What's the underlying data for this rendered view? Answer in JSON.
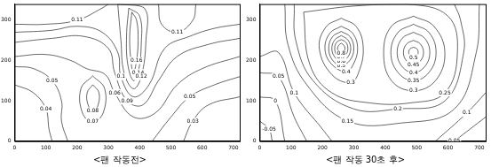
{
  "chart_data": [
    {
      "type": "contour",
      "title": "<팬 작동전>",
      "xlim": [
        0,
        720
      ],
      "ylim": [
        0,
        340
      ],
      "xticks": [
        0,
        100,
        200,
        300,
        400,
        500,
        600,
        700
      ],
      "yticks": [
        0,
        100,
        200,
        300
      ],
      "grid": false,
      "contours": [
        {
          "level": 0.16,
          "points": [
            [
              375,
              320
            ],
            [
              390,
              300
            ],
            [
              395,
              250
            ],
            [
              390,
              200
            ],
            [
              380,
              170
            ],
            [
              372,
              200
            ],
            [
              368,
              260
            ],
            [
              375,
              320
            ]
          ]
        },
        {
          "level": 0.14,
          "points": [
            [
              365,
              330
            ],
            [
              400,
              310
            ],
            [
              405,
              240
            ],
            [
              395,
              170
            ],
            [
              380,
              150
            ],
            [
              362,
              190
            ],
            [
              358,
              260
            ],
            [
              365,
              330
            ]
          ]
        },
        {
          "level": 0.12,
          "points": [
            [
              330,
              340
            ],
            [
              415,
              330
            ],
            [
              420,
              250
            ],
            [
              405,
              160
            ],
            [
              380,
              130
            ],
            [
              350,
              170
            ],
            [
              340,
              250
            ],
            [
              330,
              340
            ]
          ]
        },
        {
          "level": 0.11,
          "points": [
            [
              0,
              290
            ],
            [
              100,
              290
            ],
            [
              200,
              300
            ],
            [
              280,
              330
            ],
            [
              300,
              340
            ]
          ]
        },
        {
          "level": 0.11,
          "points": [
            [
              460,
              340
            ],
            [
              470,
              290
            ],
            [
              520,
              270
            ],
            [
              570,
              300
            ],
            [
              580,
              340
            ]
          ]
        },
        {
          "level": 0.1,
          "points": [
            [
              0,
              270
            ],
            [
              120,
              275
            ],
            [
              200,
              285
            ],
            [
              280,
              270
            ],
            [
              330,
              220
            ],
            [
              340,
              160
            ],
            [
              380,
              110
            ],
            [
              430,
              140
            ],
            [
              480,
              230
            ],
            [
              560,
              260
            ],
            [
              640,
              280
            ],
            [
              720,
              290
            ]
          ]
        },
        {
          "level": 0.09,
          "points": [
            [
              0,
              245
            ],
            [
              120,
              255
            ],
            [
              220,
              260
            ],
            [
              300,
              230
            ],
            [
              320,
              170
            ],
            [
              360,
              100
            ],
            [
              410,
              90
            ],
            [
              460,
              150
            ],
            [
              520,
              210
            ],
            [
              620,
              240
            ],
            [
              720,
              255
            ]
          ]
        },
        {
          "level": 0.06,
          "points": [
            [
              0,
              210
            ],
            [
              100,
              215
            ],
            [
              180,
              200
            ],
            [
              230,
              180
            ],
            [
              290,
              165
            ],
            [
              320,
              120
            ],
            [
              380,
              60
            ],
            [
              450,
              70
            ],
            [
              520,
              140
            ],
            [
              600,
              180
            ],
            [
              720,
              210
            ]
          ]
        },
        {
          "level": 0.08,
          "points": [
            [
              250,
              140
            ],
            [
              270,
              120
            ],
            [
              265,
              85
            ],
            [
              250,
              75
            ],
            [
              235,
              90
            ],
            [
              232,
              120
            ],
            [
              250,
              140
            ]
          ]
        },
        {
          "level": 0.07,
          "points": [
            [
              250,
              162
            ],
            [
              288,
              130
            ],
            [
              283,
              70
            ],
            [
              250,
              48
            ],
            [
              217,
              70
            ],
            [
              212,
              130
            ],
            [
              250,
              162
            ]
          ]
        },
        {
          "level": 0.05,
          "points": [
            [
              0,
              185
            ],
            [
              60,
              180
            ],
            [
              120,
              150
            ],
            [
              150,
              100
            ],
            [
              150,
              50
            ],
            [
              170,
              0
            ]
          ]
        },
        {
          "level": 0.05,
          "points": [
            [
              440,
              0
            ],
            [
              500,
              60
            ],
            [
              560,
              110
            ],
            [
              640,
              140
            ],
            [
              720,
              160
            ]
          ]
        },
        {
          "level": 0.04,
          "points": [
            [
              0,
              140
            ],
            [
              60,
              120
            ],
            [
              100,
              80
            ],
            [
              110,
              30
            ],
            [
              120,
              0
            ]
          ]
        },
        {
          "level": 0.03,
          "points": [
            [
              540,
              0
            ],
            [
              570,
              50
            ],
            [
              620,
              90
            ],
            [
              720,
              110
            ]
          ]
        }
      ]
    },
    {
      "type": "contour",
      "title": "<팬 작동 30초 후>",
      "xlim": [
        0,
        720
      ],
      "ylim": [
        0,
        340
      ],
      "xticks": [
        0,
        100,
        200,
        300,
        400,
        500,
        600,
        700
      ],
      "yticks": [
        0,
        100,
        200,
        300
      ],
      "grid": false,
      "contours": [
        {
          "level": -0.05,
          "points": [
            [
              0,
              50
            ],
            [
              30,
              30
            ],
            [
              40,
              0
            ]
          ]
        },
        {
          "level": 0,
          "points": [
            [
              0,
              110
            ],
            [
              50,
              100
            ],
            [
              80,
              0
            ]
          ]
        },
        {
          "level": 0.05,
          "points": [
            [
              0,
              170
            ],
            [
              60,
              160
            ],
            [
              110,
              60
            ],
            [
              150,
              0
            ]
          ]
        },
        {
          "level": 0.05,
          "points": [
            [
              620,
              0
            ],
            [
              720,
              60
            ]
          ]
        },
        {
          "level": 0.1,
          "points": [
            [
              0,
              210
            ],
            [
              60,
              220
            ],
            [
              110,
              120
            ],
            [
              200,
              30
            ],
            [
              230,
              0
            ]
          ]
        },
        {
          "level": 0.1,
          "points": [
            [
              560,
              0
            ],
            [
              660,
              70
            ],
            [
              720,
              120
            ]
          ]
        },
        {
          "level": 0.15,
          "points": [
            [
              80,
              340
            ],
            [
              90,
              240
            ],
            [
              150,
              140
            ],
            [
              280,
              50
            ],
            [
              450,
              45
            ],
            [
              620,
              80
            ],
            [
              690,
              220
            ],
            [
              700,
              340
            ]
          ]
        },
        {
          "level": 0.2,
          "points": [
            [
              110,
              340
            ],
            [
              115,
              250
            ],
            [
              170,
              150
            ],
            [
              300,
              80
            ],
            [
              440,
              80
            ],
            [
              590,
              100
            ],
            [
              650,
              220
            ],
            [
              640,
              300
            ],
            [
              620,
              340
            ]
          ]
        },
        {
          "level": 0.25,
          "points": [
            [
              140,
              320
            ],
            [
              300,
              335
            ],
            [
              470,
              340
            ],
            [
              600,
              310
            ],
            [
              630,
              220
            ],
            [
              590,
              120
            ],
            [
              480,
              95
            ],
            [
              350,
              95
            ],
            [
              230,
              120
            ],
            [
              160,
              190
            ],
            [
              140,
              320
            ]
          ]
        },
        {
          "level": 0.3,
          "points": [
            [
              260,
              305
            ],
            [
              309,
              283
            ],
            [
              330,
              230
            ],
            [
              315,
              170
            ],
            [
              290,
              145
            ],
            [
              230,
              165
            ],
            [
              190,
              230
            ],
            [
              211,
              283
            ],
            [
              260,
              305
            ]
          ]
        },
        {
          "level": 0.4,
          "points": [
            [
              260,
              285
            ],
            [
              296,
              268
            ],
            [
              312,
              230
            ],
            [
              298,
              190
            ],
            [
              275,
              172
            ],
            [
              228,
              192
            ],
            [
              208,
              230
            ],
            [
              224,
              268
            ],
            [
              260,
              285
            ]
          ]
        },
        {
          "level": 0.5,
          "points": [
            [
              260,
              272
            ],
            [
              288,
              259
            ],
            [
              300,
              230
            ],
            [
              288,
              201
            ],
            [
              260,
              188
            ],
            [
              232,
              201
            ],
            [
              220,
              230
            ],
            [
              232,
              259
            ],
            [
              260,
              272
            ]
          ]
        },
        {
          "level": 0.6,
          "points": [
            [
              260,
              262
            ],
            [
              281,
              251
            ],
            [
              290,
              230
            ],
            [
              281,
              209
            ],
            [
              260,
              198
            ],
            [
              239,
              209
            ],
            [
              230,
              230
            ],
            [
              239,
              251
            ],
            [
              260,
              262
            ]
          ]
        },
        {
          "level": 0.7,
          "points": [
            [
              260,
              252
            ],
            [
              275,
              245
            ],
            [
              281,
              230
            ],
            [
              275,
              215
            ],
            [
              260,
              208
            ],
            [
              245,
              215
            ],
            [
              239,
              230
            ],
            [
              245,
              245
            ],
            [
              260,
              252
            ]
          ]
        },
        {
          "level": 0.8,
          "points": [
            [
              260,
              243
            ],
            [
              268,
              238
            ],
            [
              272,
              230
            ],
            [
              268,
              222
            ],
            [
              260,
              217
            ],
            [
              252,
              222
            ],
            [
              248,
              230
            ],
            [
              252,
              238
            ],
            [
              260,
              243
            ]
          ]
        },
        {
          "level": 0.3,
          "points": [
            [
              490,
              310
            ],
            [
              555,
              285
            ],
            [
              590,
              220
            ],
            [
              560,
              150
            ],
            [
              490,
              125
            ],
            [
              420,
              150
            ],
            [
              395,
              220
            ],
            [
              420,
              285
            ],
            [
              490,
              310
            ]
          ]
        },
        {
          "level": 0.35,
          "points": [
            [
              490,
              290
            ],
            [
              540,
              269
            ],
            [
              562,
              220
            ],
            [
              540,
              171
            ],
            [
              490,
              150
            ],
            [
              440,
              171
            ],
            [
              418,
              220
            ],
            [
              440,
              269
            ],
            [
              490,
              290
            ]
          ]
        },
        {
          "level": 0.4,
          "points": [
            [
              490,
              270
            ],
            [
              526,
              255
            ],
            [
              542,
              220
            ],
            [
              526,
              185
            ],
            [
              490,
              170
            ],
            [
              454,
              185
            ],
            [
              438,
              220
            ],
            [
              454,
              255
            ],
            [
              490,
              270
            ]
          ]
        },
        {
          "level": 0.45,
          "points": [
            [
              490,
              250
            ],
            [
              512,
              241
            ],
            [
              522,
              220
            ],
            [
              512,
              199
            ],
            [
              490,
              190
            ],
            [
              468,
              199
            ],
            [
              458,
              220
            ],
            [
              468,
              241
            ],
            [
              490,
              250
            ]
          ]
        },
        {
          "level": 0.5,
          "points": [
            [
              490,
              233
            ],
            [
              501,
              229
            ],
            [
              505,
              220
            ],
            [
              501,
              211
            ],
            [
              490,
              207
            ],
            [
              479,
              211
            ],
            [
              475,
              220
            ],
            [
              479,
              229
            ],
            [
              490,
              233
            ]
          ]
        }
      ]
    }
  ]
}
